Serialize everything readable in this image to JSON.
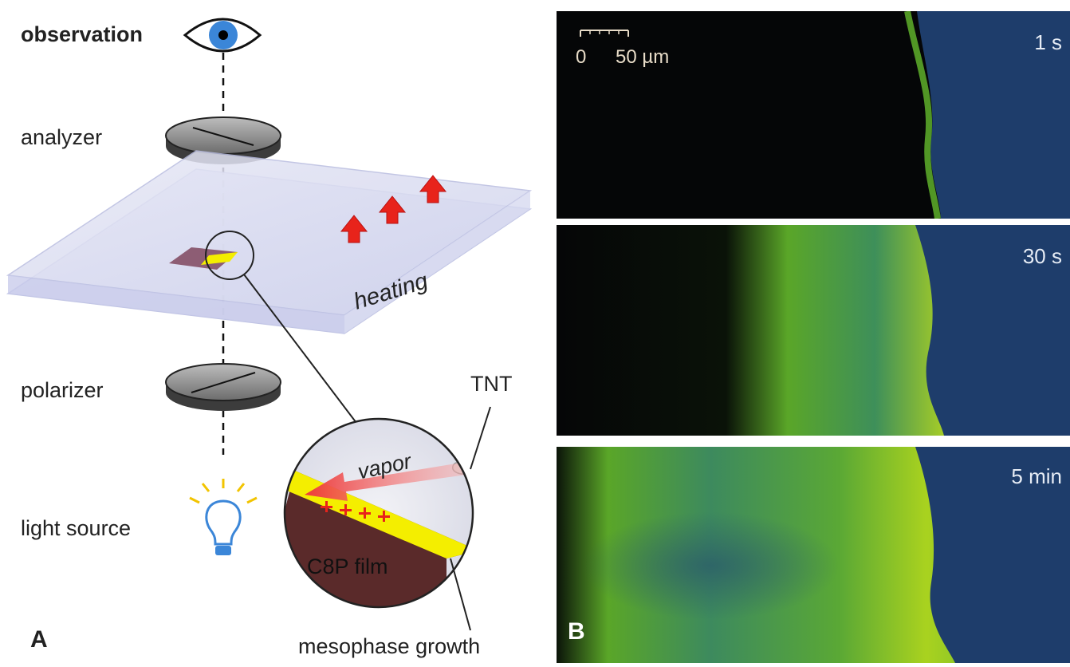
{
  "panel_a": {
    "label": "A",
    "observation": "observation",
    "analyzer": "analyzer",
    "polarizer": "polarizer",
    "light_source": "light source",
    "heating": "heating",
    "tnt": "TNT",
    "vapor": "vapor",
    "film": "C8P film",
    "growth": "mesophase growth"
  },
  "panel_b": {
    "label": "B",
    "scale_start": "0",
    "scale_end": "50 µm",
    "times": [
      "1 s",
      "30 s",
      "5 min"
    ]
  },
  "colors": {
    "heating_arrow": "#e8231b",
    "film": "#5a2a2a",
    "mesophase": "#f4ee00",
    "substrate_blue": "#1e3d6b",
    "texture_green": "#7ec62a"
  }
}
